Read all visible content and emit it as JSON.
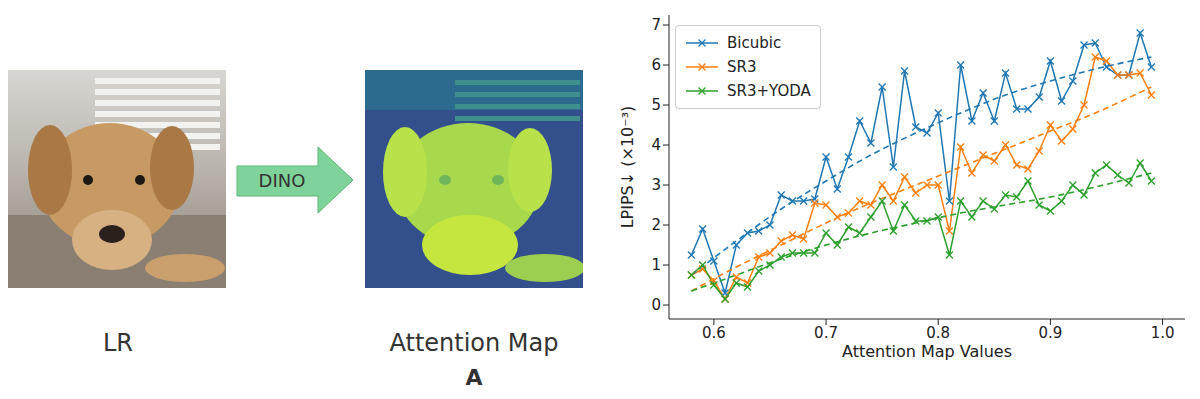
{
  "figure": {
    "image_label": "LR",
    "arrow_label": "DINO",
    "map_label": "Attention Map",
    "map_symbol": "A"
  },
  "chart_data": {
    "type": "line",
    "x_label": "Attention Map Values",
    "y_label": "LPIPS↓ (×10⁻³)",
    "x": [
      0.58,
      0.59,
      0.6,
      0.61,
      0.62,
      0.63,
      0.64,
      0.65,
      0.66,
      0.67,
      0.68,
      0.69,
      0.7,
      0.71,
      0.72,
      0.73,
      0.74,
      0.75,
      0.76,
      0.77,
      0.78,
      0.79,
      0.8,
      0.81,
      0.82,
      0.83,
      0.84,
      0.85,
      0.86,
      0.87,
      0.88,
      0.89,
      0.9,
      0.91,
      0.92,
      0.93,
      0.94,
      0.95,
      0.96,
      0.97,
      0.98,
      0.99
    ],
    "series": [
      {
        "name": "Bicubic",
        "color": "#1f77b4",
        "marker": "x",
        "line_style": "solid",
        "values": [
          1.25,
          1.9,
          1.1,
          0.3,
          1.5,
          1.8,
          1.85,
          2.0,
          2.75,
          2.6,
          2.6,
          2.65,
          3.7,
          2.9,
          3.7,
          4.6,
          4.05,
          5.45,
          3.45,
          5.85,
          4.45,
          4.3,
          4.8,
          2.6,
          6.0,
          4.6,
          5.3,
          4.6,
          5.8,
          4.9,
          4.9,
          5.2,
          6.1,
          5.1,
          5.6,
          6.5,
          6.55,
          5.95,
          5.75,
          5.75,
          6.8,
          5.95
        ],
        "trend": {
          "line_style": "dashed",
          "x": [
            0.58,
            0.62,
            0.66,
            0.7,
            0.74,
            0.78,
            0.82,
            0.86,
            0.9,
            0.94,
            0.99
          ],
          "values": [
            0.75,
            1.6,
            2.4,
            3.1,
            3.75,
            4.3,
            4.8,
            5.25,
            5.6,
            5.9,
            6.2
          ]
        }
      },
      {
        "name": "SR3",
        "color": "#ff7f0e",
        "marker": "x",
        "line_style": "solid",
        "values": [
          0.75,
          0.9,
          0.6,
          0.15,
          0.7,
          0.55,
          1.2,
          1.3,
          1.6,
          1.75,
          1.65,
          2.55,
          2.5,
          2.2,
          2.3,
          2.6,
          2.5,
          3.0,
          2.6,
          3.2,
          2.8,
          3.0,
          3.0,
          1.85,
          3.95,
          3.3,
          3.75,
          3.6,
          4.0,
          3.5,
          3.4,
          3.85,
          4.5,
          4.1,
          4.4,
          5.0,
          6.2,
          6.1,
          5.75,
          5.75,
          5.8,
          5.25
        ],
        "trend": {
          "line_style": "dashed",
          "x": [
            0.58,
            0.62,
            0.66,
            0.7,
            0.74,
            0.78,
            0.82,
            0.86,
            0.9,
            0.94,
            0.99
          ],
          "values": [
            0.35,
            0.95,
            1.5,
            2.05,
            2.55,
            3.0,
            3.45,
            3.9,
            4.35,
            4.8,
            5.45
          ]
        }
      },
      {
        "name": "SR3+YODA",
        "color": "#2ca02c",
        "marker": "x",
        "line_style": "solid",
        "values": [
          0.75,
          1.0,
          0.5,
          0.15,
          0.55,
          0.45,
          0.85,
          1.0,
          1.2,
          1.3,
          1.3,
          1.3,
          1.8,
          1.5,
          1.95,
          1.8,
          2.2,
          2.6,
          1.85,
          2.5,
          2.1,
          2.1,
          2.2,
          1.25,
          2.6,
          2.2,
          2.6,
          2.4,
          2.75,
          2.7,
          3.1,
          2.5,
          2.35,
          2.6,
          3.0,
          2.75,
          3.3,
          3.5,
          3.25,
          3.05,
          3.55,
          3.1
        ],
        "trend": {
          "line_style": "dashed",
          "x": [
            0.58,
            0.62,
            0.66,
            0.7,
            0.74,
            0.78,
            0.82,
            0.86,
            0.9,
            0.94,
            0.99
          ],
          "values": [
            0.35,
            0.75,
            1.15,
            1.5,
            1.8,
            2.05,
            2.3,
            2.5,
            2.7,
            2.95,
            3.3
          ]
        }
      }
    ],
    "xlim": [
      0.56,
      1.02
    ],
    "xticks": [
      0.6,
      0.7,
      0.8,
      0.9,
      {
        "value": 1,
        "label": "1.0"
      }
    ],
    "ylim": [
      -0.35,
      7.25
    ],
    "yticks": [
      0,
      1,
      2,
      3,
      4,
      5,
      6,
      7
    ],
    "grid": false,
    "legend": "upper left"
  }
}
